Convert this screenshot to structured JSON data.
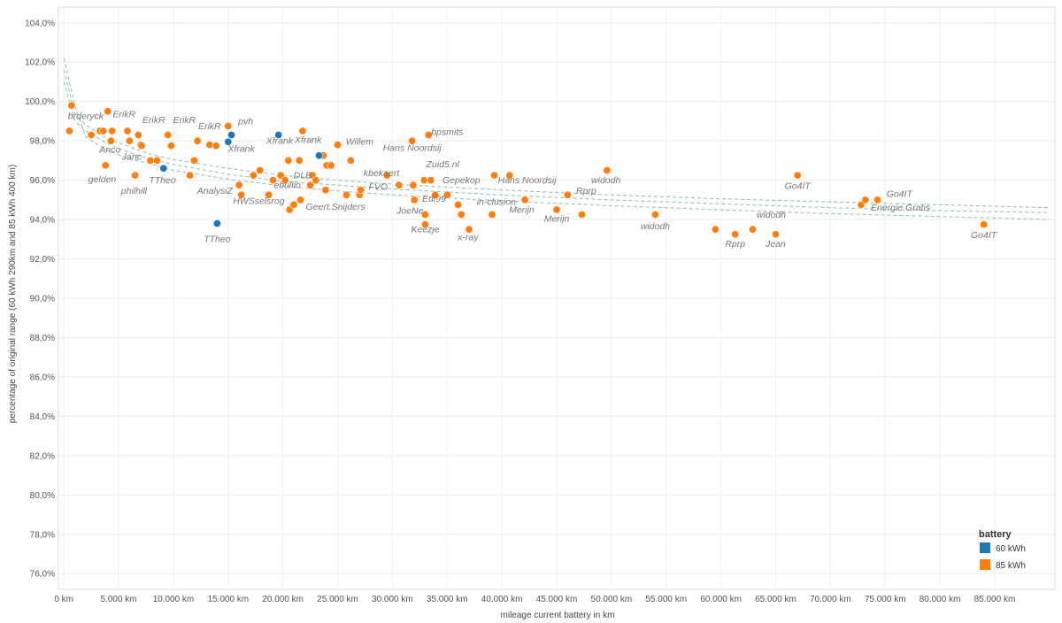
{
  "chart_data": {
    "type": "scatter",
    "xlabel": "mileage current battery in km",
    "ylabel": "percentage of original range (60 kWh 290km and 85 kWh 400 km)",
    "xlim": [
      -500,
      90500
    ],
    "ylim": [
      75.2,
      104.8
    ],
    "x_ticks": [
      {
        "value": 0,
        "label": "0 km"
      },
      {
        "value": 5000,
        "label": "5.000 km"
      },
      {
        "value": 10000,
        "label": "10.000 km"
      },
      {
        "value": 15000,
        "label": "15.000 km"
      },
      {
        "value": 20000,
        "label": "20.000 km"
      },
      {
        "value": 25000,
        "label": "25.000 km"
      },
      {
        "value": 30000,
        "label": "30.000 km"
      },
      {
        "value": 35000,
        "label": "35.000 km"
      },
      {
        "value": 40000,
        "label": "40.000 km"
      },
      {
        "value": 45000,
        "label": "45.000 km"
      },
      {
        "value": 50000,
        "label": "50.000 km"
      },
      {
        "value": 55000,
        "label": "55.000 km"
      },
      {
        "value": 60000,
        "label": "60.000 km"
      },
      {
        "value": 65000,
        "label": "65.000 km"
      },
      {
        "value": 70000,
        "label": "70.000 km"
      },
      {
        "value": 75000,
        "label": "75.000 km"
      },
      {
        "value": 80000,
        "label": "80.000 km"
      },
      {
        "value": 85000,
        "label": "85.000 km"
      }
    ],
    "y_ticks": [
      {
        "value": 76,
        "label": "76,0%"
      },
      {
        "value": 78,
        "label": "78,0%"
      },
      {
        "value": 80,
        "label": "80,0%"
      },
      {
        "value": 82,
        "label": "82,0%"
      },
      {
        "value": 84,
        "label": "84,0%"
      },
      {
        "value": 86,
        "label": "86,0%"
      },
      {
        "value": 88,
        "label": "88,0%"
      },
      {
        "value": 90,
        "label": "90,0%"
      },
      {
        "value": 92,
        "label": "92,0%"
      },
      {
        "value": 94,
        "label": "94,0%"
      },
      {
        "value": 96,
        "label": "96,0%"
      },
      {
        "value": 98,
        "label": "98,0%"
      },
      {
        "value": 100,
        "label": "100,0%"
      },
      {
        "value": 102,
        "label": "102,0%"
      },
      {
        "value": 104,
        "label": "104,0%"
      }
    ],
    "grid": true,
    "legend": {
      "title": "battery",
      "placement": "bottom-right"
    },
    "series": [
      {
        "name": "60 kWh",
        "color": "#1f77b4",
        "points": [
          [
            9100,
            96.6
          ],
          [
            14000,
            93.8
          ],
          [
            15000,
            97.95
          ],
          [
            15300,
            98.3
          ],
          [
            19600,
            98.3
          ],
          [
            23300,
            97.25
          ]
        ]
      },
      {
        "name": "85 kWh",
        "color": "#ff7f0e",
        "points": [
          [
            700,
            99.8
          ],
          [
            500,
            98.5
          ],
          [
            2500,
            98.3
          ],
          [
            3300,
            98.5
          ],
          [
            3600,
            98.5
          ],
          [
            3800,
            96.75
          ],
          [
            4000,
            99.5
          ],
          [
            4300,
            98.0
          ],
          [
            4400,
            98.5
          ],
          [
            5800,
            98.5
          ],
          [
            6000,
            98.0
          ],
          [
            6500,
            96.25
          ],
          [
            6800,
            98.3
          ],
          [
            7000,
            97.8
          ],
          [
            7100,
            97.75
          ],
          [
            7900,
            97.0
          ],
          [
            8500,
            97.0
          ],
          [
            9500,
            98.3
          ],
          [
            9800,
            97.75
          ],
          [
            11500,
            96.25
          ],
          [
            11900,
            97.0
          ],
          [
            12200,
            98.0
          ],
          [
            13300,
            97.8
          ],
          [
            13900,
            97.75
          ],
          [
            15000,
            98.75
          ],
          [
            16000,
            95.75
          ],
          [
            16200,
            95.25
          ],
          [
            17300,
            96.25
          ],
          [
            17900,
            96.5
          ],
          [
            18700,
            95.25
          ],
          [
            19100,
            96.0
          ],
          [
            19800,
            96.25
          ],
          [
            20200,
            96.0
          ],
          [
            20500,
            97.0
          ],
          [
            20600,
            94.5
          ],
          [
            21000,
            94.75
          ],
          [
            21500,
            97.0
          ],
          [
            21600,
            95.0
          ],
          [
            21800,
            98.5
          ],
          [
            22500,
            95.75
          ],
          [
            22700,
            96.25
          ],
          [
            23000,
            96.0
          ],
          [
            23700,
            97.25
          ],
          [
            23900,
            95.5
          ],
          [
            24000,
            96.75
          ],
          [
            24400,
            96.75
          ],
          [
            25000,
            97.8
          ],
          [
            25800,
            95.25
          ],
          [
            26200,
            97.0
          ],
          [
            27000,
            95.25
          ],
          [
            27100,
            95.5
          ],
          [
            29500,
            96.25
          ],
          [
            30600,
            95.75
          ],
          [
            31800,
            98.0
          ],
          [
            31900,
            95.75
          ],
          [
            32000,
            95.0
          ],
          [
            32900,
            96.0
          ],
          [
            33000,
            94.25
          ],
          [
            33000,
            93.75
          ],
          [
            33300,
            98.3
          ],
          [
            33500,
            96.0
          ],
          [
            33900,
            95.25
          ],
          [
            35000,
            95.25
          ],
          [
            36000,
            94.75
          ],
          [
            36300,
            94.25
          ],
          [
            37000,
            93.5
          ],
          [
            39100,
            94.25
          ],
          [
            39300,
            96.25
          ],
          [
            40700,
            96.25
          ],
          [
            42100,
            95.0
          ],
          [
            45000,
            94.5
          ],
          [
            46000,
            95.25
          ],
          [
            47300,
            94.25
          ],
          [
            49600,
            96.5
          ],
          [
            54000,
            94.25
          ],
          [
            59500,
            93.5
          ],
          [
            61300,
            93.25
          ],
          [
            62900,
            93.5
          ],
          [
            65000,
            93.25
          ],
          [
            67000,
            96.25
          ],
          [
            72800,
            94.75
          ],
          [
            73200,
            95.0
          ],
          [
            74300,
            95.0
          ],
          [
            84000,
            93.75
          ]
        ]
      }
    ],
    "trendline": {
      "style": "dashed",
      "color": "#8fbcaa",
      "curves": [
        [
          [
            0,
            101.6
          ],
          [
            1000,
            99.4
          ],
          [
            2000,
            98.8
          ],
          [
            4000,
            98.1
          ],
          [
            6000,
            97.7
          ],
          [
            8000,
            97.3
          ],
          [
            10000,
            97.05
          ],
          [
            15000,
            96.6
          ],
          [
            20000,
            96.25
          ],
          [
            25000,
            96.0
          ],
          [
            30000,
            95.8
          ],
          [
            40000,
            95.5
          ],
          [
            50000,
            95.25
          ],
          [
            60000,
            95.05
          ],
          [
            70000,
            94.9
          ],
          [
            80000,
            94.75
          ],
          [
            90000,
            94.6
          ]
        ],
        [
          [
            0,
            101.0
          ],
          [
            1000,
            99.0
          ],
          [
            2000,
            98.5
          ],
          [
            4000,
            97.85
          ],
          [
            6000,
            97.4
          ],
          [
            8000,
            97.05
          ],
          [
            10000,
            96.8
          ],
          [
            15000,
            96.3
          ],
          [
            20000,
            95.95
          ],
          [
            25000,
            95.75
          ],
          [
            30000,
            95.55
          ],
          [
            40000,
            95.25
          ],
          [
            50000,
            95.0
          ],
          [
            60000,
            94.8
          ],
          [
            70000,
            94.6
          ],
          [
            80000,
            94.45
          ],
          [
            90000,
            94.35
          ]
        ],
        [
          [
            0,
            102.2
          ],
          [
            1000,
            99.8
          ],
          [
            2000,
            98.2
          ],
          [
            4000,
            97.5
          ],
          [
            6000,
            97.1
          ],
          [
            8000,
            96.8
          ],
          [
            10000,
            96.5
          ],
          [
            15000,
            96.05
          ],
          [
            20000,
            95.7
          ],
          [
            25000,
            95.45
          ],
          [
            30000,
            95.25
          ],
          [
            40000,
            94.95
          ],
          [
            50000,
            94.7
          ],
          [
            60000,
            94.5
          ],
          [
            70000,
            94.3
          ],
          [
            80000,
            94.15
          ],
          [
            90000,
            94.0
          ]
        ]
      ]
    },
    "annotations": [
      {
        "text": "brderyck",
        "x": 2000,
        "y": 99.1
      },
      {
        "text": "ErikR",
        "x": 5500,
        "y": 99.2
      },
      {
        "text": "ErikR",
        "x": 8200,
        "y": 98.9
      },
      {
        "text": "ErikR",
        "x": 11000,
        "y": 98.9
      },
      {
        "text": "ErikR",
        "x": 13300,
        "y": 98.6
      },
      {
        "text": "pvh",
        "x": 16600,
        "y": 98.85
      },
      {
        "text": "Anco",
        "x": 4200,
        "y": 97.4
      },
      {
        "text": "Janc",
        "x": 6200,
        "y": 97.05
      },
      {
        "text": "gelden",
        "x": 3500,
        "y": 95.9
      },
      {
        "text": "philhill",
        "x": 6400,
        "y": 95.3
      },
      {
        "text": "TTheo",
        "x": 9000,
        "y": 95.85
      },
      {
        "text": "AnalysiZ",
        "x": 13800,
        "y": 95.3
      },
      {
        "text": "Xfrank",
        "x": 16200,
        "y": 97.45
      },
      {
        "text": "Xfrank",
        "x": 19700,
        "y": 97.85
      },
      {
        "text": "Xfrank",
        "x": 22300,
        "y": 97.9
      },
      {
        "text": "Willem",
        "x": 27000,
        "y": 97.8
      },
      {
        "text": "Hans Noordsij",
        "x": 31800,
        "y": 97.5
      },
      {
        "text": "bpsmits",
        "x": 35000,
        "y": 98.3
      },
      {
        "text": "DLB",
        "x": 21800,
        "y": 96.1
      },
      {
        "text": "kbekaert",
        "x": 29000,
        "y": 96.2
      },
      {
        "text": "ebullio",
        "x": 20400,
        "y": 95.6
      },
      {
        "text": "HWSselsrog",
        "x": 17800,
        "y": 94.8
      },
      {
        "text": "Geert.Snijders",
        "x": 24800,
        "y": 94.5
      },
      {
        "text": "FVO",
        "x": 28700,
        "y": 95.5
      },
      {
        "text": "TTheo",
        "x": 14000,
        "y": 92.85
      },
      {
        "text": "Zuid5.nl",
        "x": 34600,
        "y": 96.65
      },
      {
        "text": "Gepekop",
        "x": 36300,
        "y": 95.85
      },
      {
        "text": "Hans Noordsij",
        "x": 42300,
        "y": 95.85
      },
      {
        "text": "Edi99",
        "x": 33800,
        "y": 94.9
      },
      {
        "text": "in-clusion",
        "x": 39500,
        "y": 94.75
      },
      {
        "text": "JoeNe",
        "x": 31600,
        "y": 94.3
      },
      {
        "text": "Keezje",
        "x": 33000,
        "y": 93.35
      },
      {
        "text": "x-ray",
        "x": 36900,
        "y": 92.95
      },
      {
        "text": "Merijn",
        "x": 41800,
        "y": 94.35
      },
      {
        "text": "Merijn",
        "x": 45000,
        "y": 93.9
      },
      {
        "text": "Rprp",
        "x": 47700,
        "y": 95.3
      },
      {
        "text": "widodh",
        "x": 49500,
        "y": 95.85
      },
      {
        "text": "widodh",
        "x": 54000,
        "y": 93.5
      },
      {
        "text": "Rprp",
        "x": 61300,
        "y": 92.6
      },
      {
        "text": "widodh",
        "x": 64600,
        "y": 94.1
      },
      {
        "text": "Jean",
        "x": 65000,
        "y": 92.6
      },
      {
        "text": "Go4IT",
        "x": 67000,
        "y": 95.55
      },
      {
        "text": "Go4IT",
        "x": 76300,
        "y": 95.15
      },
      {
        "text": "Energie Gratis",
        "x": 76400,
        "y": 94.45
      },
      {
        "text": "Go4IT",
        "x": 84000,
        "y": 93.05
      }
    ]
  }
}
